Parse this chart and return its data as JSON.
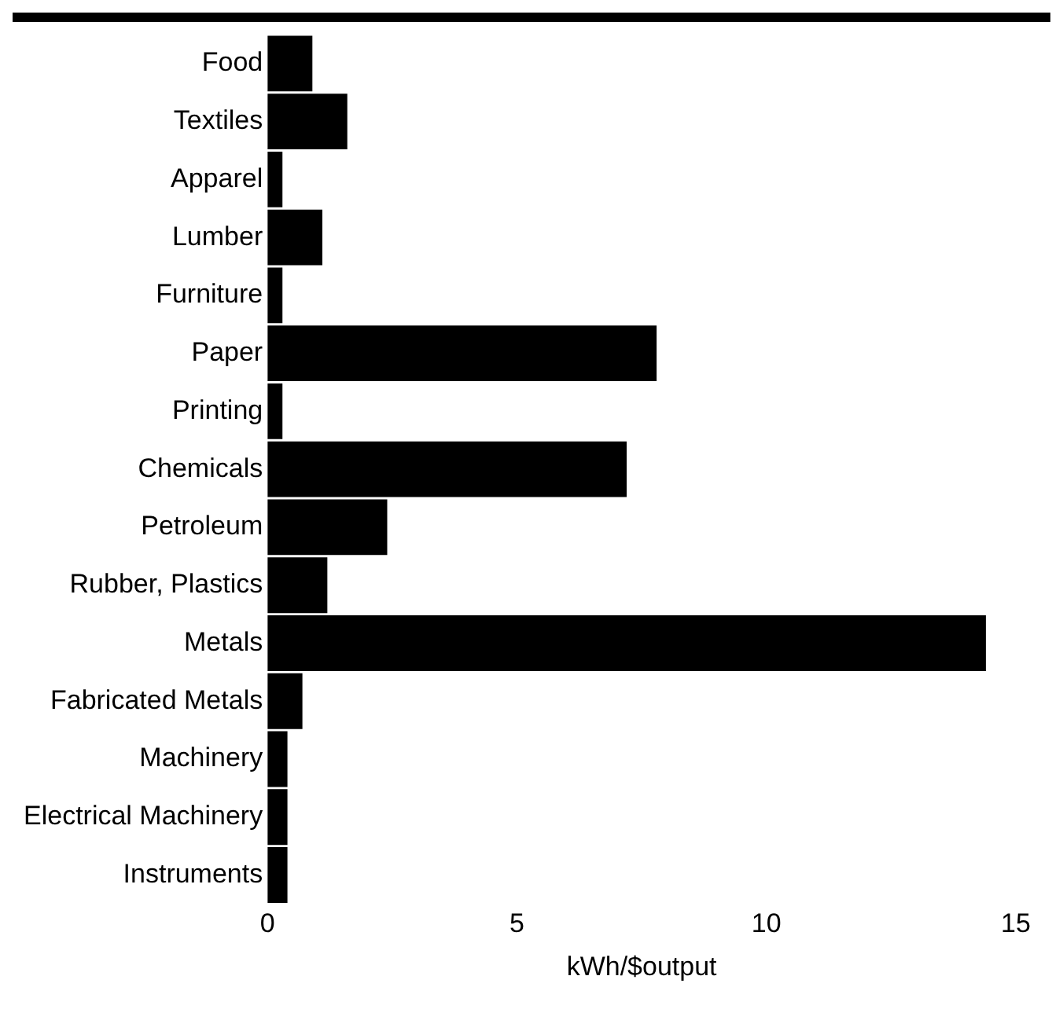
{
  "chart_data": {
    "type": "bar",
    "orientation": "horizontal",
    "xlabel": "kWh/$output",
    "categories": [
      "Food",
      "Textiles",
      "Apparel",
      "Lumber",
      "Furniture",
      "Paper",
      "Printing",
      "Chemicals",
      "Petroleum",
      "Rubber, Plastics",
      "Metals",
      "Fabricated Metals",
      "Machinery",
      "Electrical Machinery",
      "Instruments"
    ],
    "values": [
      0.9,
      1.6,
      0.3,
      1.1,
      0.3,
      7.8,
      0.3,
      7.2,
      2.4,
      1.2,
      14.4,
      0.7,
      0.4,
      0.4,
      0.4
    ],
    "color": "#000000",
    "xlim": [
      0,
      15
    ],
    "xticks": [
      0,
      5,
      10,
      15
    ],
    "grid": false,
    "legend": false
  }
}
